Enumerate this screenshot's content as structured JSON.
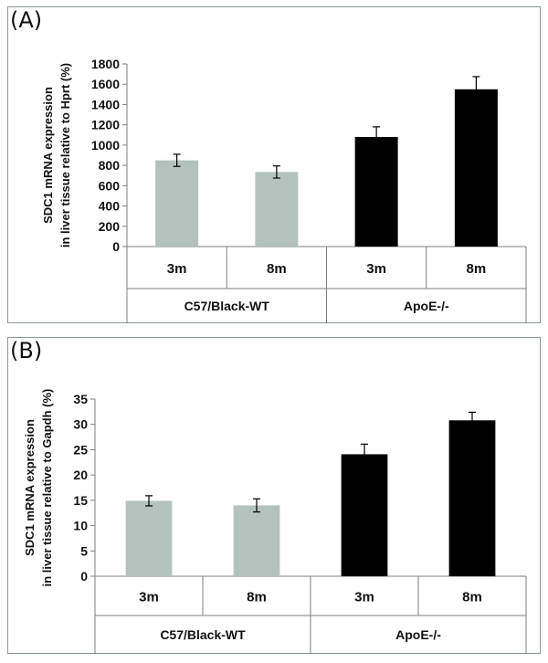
{
  "chart_data": [
    {
      "panel_label": "(A)",
      "type": "bar",
      "ylabel_lines": [
        "SDC1 mRNA expression",
        "in liver tissue relative to Hprt  (%)"
      ],
      "ylim": [
        0,
        1800
      ],
      "yticks": [
        0,
        200,
        400,
        600,
        800,
        1000,
        1200,
        1400,
        1600,
        1800
      ],
      "categories": [
        "3m",
        "8m",
        "3m",
        "8m"
      ],
      "groups": [
        {
          "label": "C57/Black-WT",
          "span": [
            0,
            1
          ]
        },
        {
          "label": "ApoE-/-",
          "span": [
            2,
            3
          ]
        }
      ],
      "values": [
        850,
        735,
        1080,
        1550
      ],
      "errors": [
        60,
        60,
        100,
        125
      ],
      "bar_colors": [
        "#b4c2be",
        "#b4c2be",
        "#000000",
        "#000000"
      ],
      "grid": false,
      "legend": "none"
    },
    {
      "panel_label": "(B)",
      "type": "bar",
      "ylabel_lines": [
        "SDC1 mRNA expression",
        "in liver tissue relative to Gapdh (%)"
      ],
      "ylim": [
        0,
        35
      ],
      "yticks": [
        0,
        5,
        10,
        15,
        20,
        25,
        30,
        35
      ],
      "categories": [
        "3m",
        "8m",
        "3m",
        "8m"
      ],
      "groups": [
        {
          "label": "C57/Black-WT",
          "span": [
            0,
            1
          ]
        },
        {
          "label": "ApoE-/-",
          "span": [
            2,
            3
          ]
        }
      ],
      "values": [
        14.9,
        14.0,
        24.1,
        30.8
      ],
      "errors": [
        1.0,
        1.3,
        2.0,
        1.6
      ],
      "bar_colors": [
        "#b4c2be",
        "#b4c2be",
        "#000000",
        "#000000"
      ],
      "grid": false,
      "legend": "none"
    }
  ]
}
